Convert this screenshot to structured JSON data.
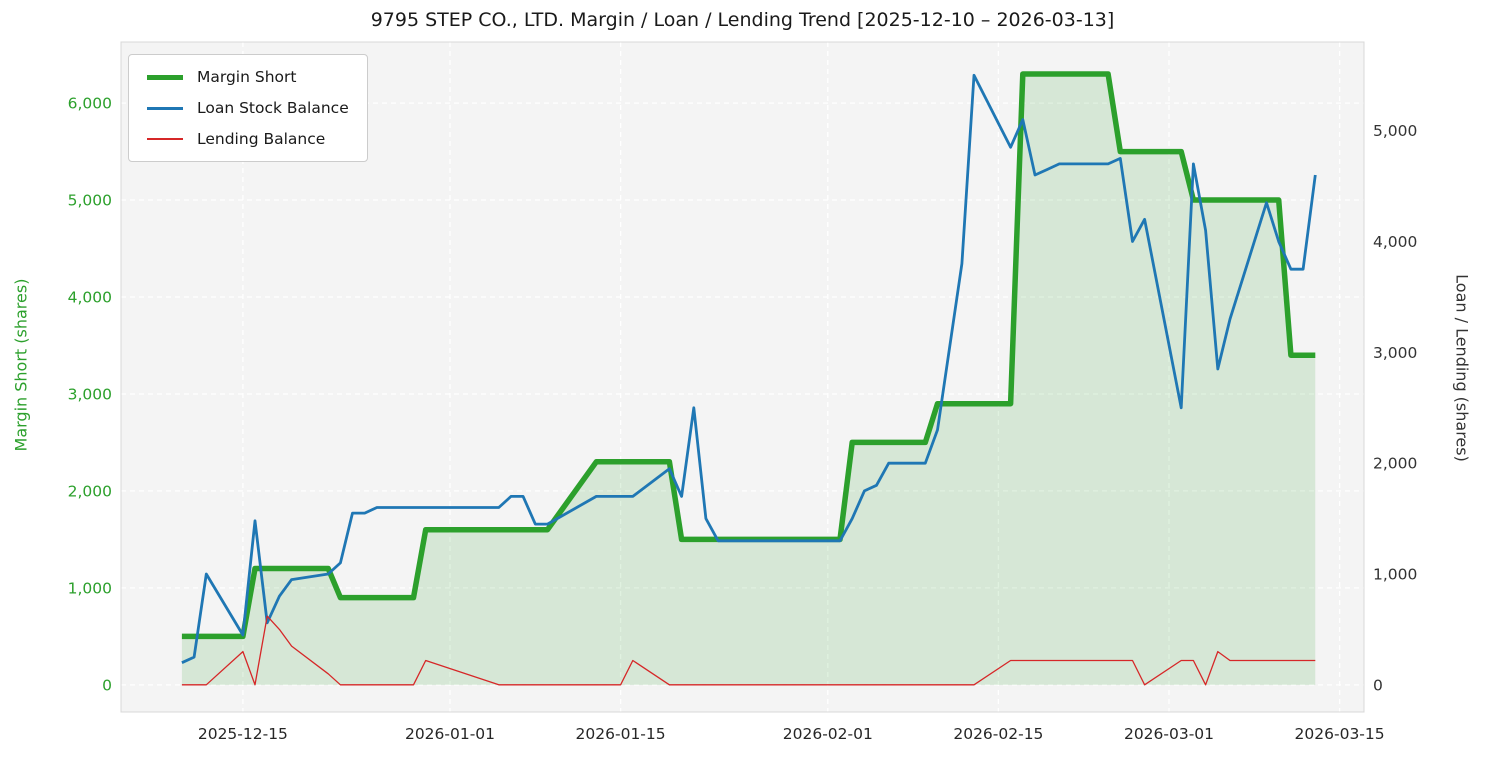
{
  "title": "9795 STEP CO., LTD. Margin / Loan / Lending Trend [2025-12-10 – 2026-03-13]",
  "chart_data": {
    "type": "line",
    "plot_bg": "#f4f4f4",
    "grid": true,
    "legend": {
      "position": "upper left"
    },
    "x_axis": {
      "ticks": [
        "2025-12-15",
        "2026-01-01",
        "2026-01-15",
        "2026-02-01",
        "2026-02-15",
        "2026-03-01",
        "2026-03-15"
      ],
      "lim": [
        "2025-12-05",
        "2026-03-17"
      ]
    },
    "left_axis": {
      "label": "Margin Short (shares)",
      "ticks": [
        0,
        1000,
        2000,
        3000,
        4000,
        5000,
        6000
      ],
      "lim": [
        -280,
        6630
      ],
      "color": "#2ca02c"
    },
    "right_axis": {
      "label": "Loan / Lending (shares)",
      "ticks": [
        0,
        1000,
        2000,
        3000,
        4000,
        5000
      ],
      "lim": [
        -245,
        5800
      ],
      "color": "#333333"
    },
    "x_dates": [
      "2025-12-10",
      "2025-12-11",
      "2025-12-12",
      "2025-12-15",
      "2025-12-16",
      "2025-12-17",
      "2025-12-18",
      "2025-12-19",
      "2025-12-22",
      "2025-12-23",
      "2025-12-24",
      "2025-12-25",
      "2025-12-26",
      "2025-12-29",
      "2025-12-30",
      "2026-01-05",
      "2026-01-06",
      "2026-01-07",
      "2026-01-08",
      "2026-01-09",
      "2026-01-13",
      "2026-01-14",
      "2026-01-15",
      "2026-01-16",
      "2026-01-19",
      "2026-01-20",
      "2026-01-21",
      "2026-01-22",
      "2026-01-23",
      "2026-01-26",
      "2026-01-27",
      "2026-01-28",
      "2026-01-29",
      "2026-01-30",
      "2026-02-02",
      "2026-02-03",
      "2026-02-04",
      "2026-02-05",
      "2026-02-06",
      "2026-02-09",
      "2026-02-10",
      "2026-02-12",
      "2026-02-13",
      "2026-02-16",
      "2026-02-17",
      "2026-02-18",
      "2026-02-19",
      "2026-02-20",
      "2026-02-24",
      "2026-02-25",
      "2026-02-26",
      "2026-02-27",
      "2026-03-02",
      "2026-03-03",
      "2026-03-04",
      "2026-03-05",
      "2026-03-06",
      "2026-03-09",
      "2026-03-10",
      "2026-03-11",
      "2026-03-12",
      "2026-03-13"
    ],
    "series": [
      {
        "name": "Margin Short",
        "axis": "left",
        "color": "#2ca02c",
        "line_width": 5.5,
        "area_fill": "rgba(44,160,44,0.15)",
        "values": [
          500,
          500,
          500,
          500,
          1200,
          1200,
          1200,
          1200,
          1200,
          900,
          900,
          900,
          900,
          900,
          1600,
          1600,
          1600,
          1600,
          1600,
          1600,
          2300,
          2300,
          2300,
          2300,
          2300,
          1500,
          1500,
          1500,
          1500,
          1500,
          1500,
          1500,
          1500,
          1500,
          1500,
          2500,
          2500,
          2500,
          2500,
          2500,
          2900,
          2900,
          2900,
          2900,
          6300,
          6300,
          6300,
          6300,
          6300,
          5500,
          5500,
          5500,
          5500,
          5000,
          5000,
          5000,
          5000,
          5000,
          5000,
          3400,
          3400,
          3400
        ]
      },
      {
        "name": "Loan Stock Balance",
        "axis": "right",
        "color": "#1f77b4",
        "line_width": 2.8,
        "area_fill": null,
        "values": [
          200,
          250,
          1000,
          450,
          1480,
          560,
          800,
          950,
          1000,
          1100,
          1550,
          1550,
          1600,
          1600,
          1600,
          1600,
          1700,
          1700,
          1450,
          1450,
          1700,
          1700,
          1700,
          1700,
          1950,
          1700,
          2500,
          1500,
          1300,
          1300,
          1300,
          1300,
          1300,
          1300,
          1300,
          1500,
          1750,
          1800,
          2000,
          2000,
          2300,
          3800,
          5500,
          4850,
          5100,
          4600,
          4650,
          4700,
          4700,
          4750,
          4000,
          4200,
          2500,
          4700,
          4100,
          2850,
          3300,
          4350,
          4000,
          3750,
          3750,
          4600
        ]
      },
      {
        "name": "Lending Balance",
        "axis": "right",
        "color": "#d62728",
        "line_width": 1.3,
        "area_fill": null,
        "values": [
          0,
          0,
          0,
          300,
          0,
          620,
          500,
          350,
          100,
          0,
          0,
          0,
          0,
          0,
          220,
          0,
          0,
          0,
          0,
          0,
          0,
          0,
          0,
          220,
          0,
          0,
          0,
          0,
          0,
          0,
          0,
          0,
          0,
          0,
          0,
          0,
          0,
          0,
          0,
          0,
          0,
          0,
          0,
          220,
          220,
          220,
          220,
          220,
          220,
          220,
          220,
          0,
          220,
          220,
          0,
          300,
          220,
          220,
          220,
          220,
          220,
          220
        ]
      }
    ]
  }
}
